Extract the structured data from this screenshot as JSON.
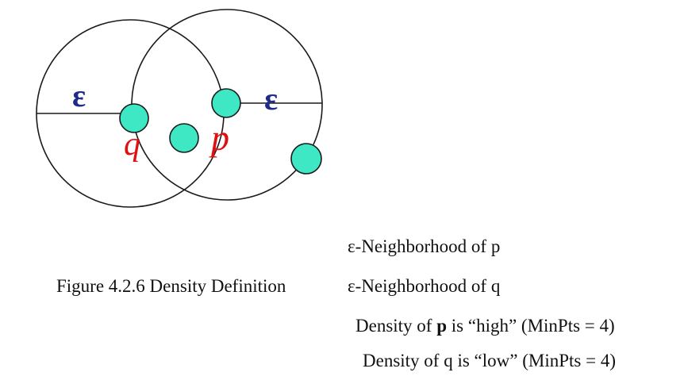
{
  "diagram": {
    "epsilon_left": "ε",
    "epsilon_right": "ε",
    "point_q_label": "q",
    "point_p_label": "p",
    "colors": {
      "circle_stroke": "#1a1a1a",
      "point_fill": "#3fe8c4",
      "point_stroke": "#1a1a1a",
      "epsilon_color": "#1f2a8a",
      "point_label_color": "#e01010"
    }
  },
  "captions": {
    "figure": "Figure 4.2.6 Density Definition",
    "neighborhood_p": "ε-Neighborhood of p",
    "neighborhood_q": "ε-Neighborhood of q",
    "density_p_prefix": "Density of ",
    "density_p_bold": "p",
    "density_p_suffix": " is “high” (MinPts = 4)",
    "density_q": "Density of q is “low” (MinPts = 4)"
  }
}
